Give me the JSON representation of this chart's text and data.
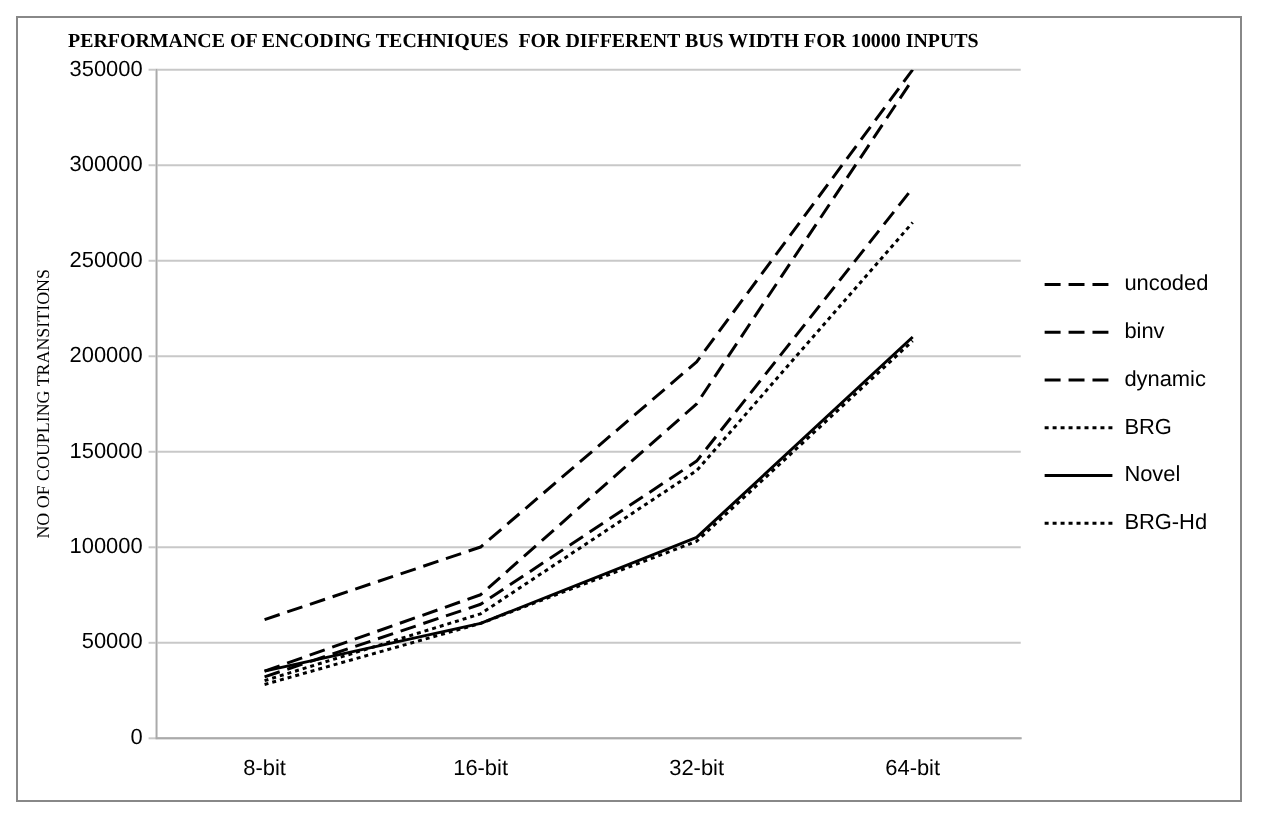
{
  "chart_data": {
    "type": "line",
    "title": "PERFORMANCE OF ENCODING TECHNIQUES  FOR DIFFERENT BUS WIDTH FOR 10000 INPUTS",
    "ylabel": "NO OF COUPLING TRANSITIONS",
    "categories": [
      "8-bit",
      "16-bit",
      "32-bit",
      "64-bit"
    ],
    "series": [
      {
        "name": "uncoded",
        "color": "#000000",
        "line_style": "dashed",
        "values": [
          62000,
          100000,
          197000,
          350000
        ]
      },
      {
        "name": "binv",
        "color": "#000000",
        "line_style": "dashed",
        "values": [
          35000,
          75000,
          175000,
          345000
        ]
      },
      {
        "name": "dynamic",
        "color": "#000000",
        "line_style": "dashed",
        "values": [
          32000,
          70000,
          145000,
          288000
        ]
      },
      {
        "name": "BRG",
        "color": "#000000",
        "line_style": "dotted",
        "values": [
          30000,
          65000,
          140000,
          270000
        ]
      },
      {
        "name": "Novel",
        "color": "#000000",
        "line_style": "solid",
        "values": [
          35000,
          60000,
          105000,
          210000
        ]
      },
      {
        "name": "BRG-Hd",
        "color": "#000000",
        "line_style": "dotted",
        "values": [
          28000,
          60000,
          103000,
          208000
        ]
      }
    ],
    "ylim": [
      0,
      350000
    ],
    "yticks": [
      0,
      50000,
      100000,
      150000,
      200000,
      250000,
      300000,
      350000
    ],
    "grid": "y",
    "legend": "right",
    "marker": "none"
  }
}
